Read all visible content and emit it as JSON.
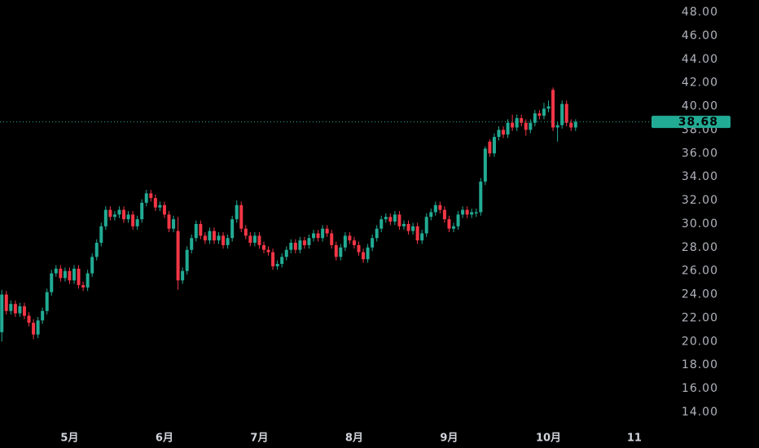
{
  "chart_data": {
    "type": "candlestick",
    "up_color": "#22ab94",
    "down_color": "#f23645",
    "last_price": 38.68,
    "ylim": [
      14,
      48
    ],
    "yticks": [
      {
        "value": 14,
        "label": "14.00"
      },
      {
        "value": 16,
        "label": "16.00"
      },
      {
        "value": 18,
        "label": "18.00"
      },
      {
        "value": 20,
        "label": "20.00"
      },
      {
        "value": 22,
        "label": "22.00"
      },
      {
        "value": 24,
        "label": "24.00"
      },
      {
        "value": 26,
        "label": "26.00"
      },
      {
        "value": 28,
        "label": "28.00"
      },
      {
        "value": 30,
        "label": "30.00"
      },
      {
        "value": 32,
        "label": "32.00"
      },
      {
        "value": 34,
        "label": "34.00"
      },
      {
        "value": 36,
        "label": "36.00"
      },
      {
        "value": 38,
        "label": "38.00"
      },
      {
        "value": 40,
        "label": "40.00"
      },
      {
        "value": 42,
        "label": "42.00"
      },
      {
        "value": 44,
        "label": "44.00"
      },
      {
        "value": 46,
        "label": "46.00"
      },
      {
        "value": 48,
        "label": "48.00"
      }
    ],
    "xlim": [
      -0.4,
      143.8
    ],
    "xticks": [
      {
        "value": 15,
        "label": "5月"
      },
      {
        "value": 36,
        "label": "6月"
      },
      {
        "value": 57,
        "label": "7月"
      },
      {
        "value": 78,
        "label": "8月"
      },
      {
        "value": 99,
        "label": "9月"
      },
      {
        "value": 121,
        "label": "10月"
      },
      {
        "value": 140,
        "label": "11"
      }
    ],
    "ohlc": [
      [
        20.8,
        24.4,
        20.0,
        24.0
      ],
      [
        24.0,
        24.3,
        22.3,
        22.6
      ],
      [
        22.6,
        23.5,
        22.3,
        23.2
      ],
      [
        23.2,
        23.5,
        22.1,
        22.4
      ],
      [
        22.4,
        23.3,
        22.1,
        23.0
      ],
      [
        23.0,
        23.3,
        21.9,
        22.2
      ],
      [
        22.2,
        22.5,
        21.3,
        21.6
      ],
      [
        21.6,
        21.9,
        20.2,
        20.6
      ],
      [
        20.6,
        22.1,
        20.3,
        21.8
      ],
      [
        21.8,
        22.9,
        21.5,
        22.6
      ],
      [
        22.6,
        24.5,
        22.3,
        24.2
      ],
      [
        24.2,
        26.1,
        23.9,
        25.8
      ],
      [
        25.8,
        26.5,
        25.5,
        26.2
      ],
      [
        26.2,
        26.5,
        25.1,
        25.4
      ],
      [
        25.4,
        26.3,
        25.1,
        26.0
      ],
      [
        26.0,
        26.3,
        24.9,
        25.2
      ],
      [
        25.2,
        26.5,
        24.9,
        26.2
      ],
      [
        26.2,
        26.5,
        24.5,
        24.8
      ],
      [
        24.8,
        25.1,
        24.3,
        24.6
      ],
      [
        24.6,
        26.1,
        24.3,
        25.8
      ],
      [
        25.8,
        27.5,
        25.5,
        27.2
      ],
      [
        27.2,
        28.7,
        26.9,
        28.4
      ],
      [
        28.4,
        30.1,
        28.1,
        29.8
      ],
      [
        29.8,
        31.5,
        29.5,
        31.2
      ],
      [
        31.2,
        31.5,
        30.3,
        30.6
      ],
      [
        30.6,
        31.1,
        30.3,
        30.8
      ],
      [
        30.8,
        31.5,
        30.5,
        31.2
      ],
      [
        31.2,
        31.5,
        30.1,
        30.4
      ],
      [
        30.4,
        31.1,
        30.1,
        30.8
      ],
      [
        30.8,
        31.1,
        29.5,
        29.8
      ],
      [
        29.8,
        30.7,
        29.5,
        30.4
      ],
      [
        30.4,
        32.1,
        30.1,
        31.8
      ],
      [
        31.8,
        32.9,
        31.5,
        32.6
      ],
      [
        32.6,
        32.9,
        31.9,
        32.2
      ],
      [
        32.2,
        32.5,
        31.1,
        31.4
      ],
      [
        31.4,
        31.9,
        31.1,
        31.6
      ],
      [
        31.6,
        31.9,
        30.5,
        30.8
      ],
      [
        30.8,
        31.1,
        29.3,
        29.6
      ],
      [
        29.6,
        30.7,
        29.3,
        30.4
      ],
      [
        29.4,
        30.6,
        24.4,
        25.2
      ],
      [
        25.2,
        26.3,
        24.9,
        26.0
      ],
      [
        26.0,
        28.1,
        25.7,
        27.8
      ],
      [
        27.8,
        29.1,
        27.5,
        28.8
      ],
      [
        28.8,
        30.3,
        28.5,
        30.0
      ],
      [
        30.0,
        30.3,
        28.7,
        29.0
      ],
      [
        29.0,
        29.3,
        28.3,
        28.6
      ],
      [
        28.6,
        29.7,
        28.3,
        29.4
      ],
      [
        29.4,
        29.7,
        28.3,
        28.6
      ],
      [
        28.6,
        29.3,
        28.3,
        29.0
      ],
      [
        29.0,
        29.3,
        27.9,
        28.2
      ],
      [
        28.2,
        29.1,
        27.9,
        28.8
      ],
      [
        28.8,
        30.7,
        28.5,
        30.4
      ],
      [
        30.4,
        32.0,
        30.1,
        31.6
      ],
      [
        31.6,
        31.9,
        29.3,
        29.6
      ],
      [
        29.6,
        29.9,
        28.7,
        29.0
      ],
      [
        29.0,
        29.3,
        28.1,
        28.4
      ],
      [
        28.4,
        29.3,
        28.1,
        29.0
      ],
      [
        29.0,
        29.3,
        27.9,
        28.2
      ],
      [
        28.2,
        28.5,
        27.5,
        27.8
      ],
      [
        27.8,
        28.1,
        27.3,
        27.6
      ],
      [
        27.6,
        27.9,
        26.1,
        26.4
      ],
      [
        26.4,
        26.9,
        26.1,
        26.6
      ],
      [
        26.6,
        27.5,
        26.3,
        27.2
      ],
      [
        27.2,
        28.1,
        26.9,
        27.8
      ],
      [
        27.8,
        28.7,
        27.5,
        28.4
      ],
      [
        28.4,
        28.7,
        27.5,
        27.8
      ],
      [
        27.8,
        28.9,
        27.5,
        28.6
      ],
      [
        28.6,
        28.9,
        27.9,
        28.2
      ],
      [
        28.2,
        29.1,
        27.9,
        28.8
      ],
      [
        28.8,
        29.5,
        28.5,
        29.2
      ],
      [
        29.2,
        29.5,
        28.5,
        28.8
      ],
      [
        28.8,
        29.9,
        28.5,
        29.6
      ],
      [
        29.6,
        29.9,
        28.9,
        29.2
      ],
      [
        29.2,
        29.5,
        27.9,
        28.2
      ],
      [
        28.2,
        28.5,
        26.9,
        27.2
      ],
      [
        27.2,
        28.3,
        26.9,
        28.0
      ],
      [
        28.0,
        29.3,
        27.7,
        29.0
      ],
      [
        29.0,
        29.3,
        28.3,
        28.6
      ],
      [
        28.6,
        28.9,
        27.9,
        28.2
      ],
      [
        28.2,
        28.5,
        27.3,
        27.6
      ],
      [
        27.6,
        27.9,
        26.7,
        27.0
      ],
      [
        27.0,
        28.3,
        26.7,
        28.0
      ],
      [
        28.0,
        29.1,
        27.7,
        28.8
      ],
      [
        28.8,
        29.9,
        28.5,
        29.6
      ],
      [
        29.6,
        30.7,
        29.3,
        30.4
      ],
      [
        30.4,
        30.9,
        30.1,
        30.6
      ],
      [
        30.6,
        30.9,
        29.9,
        30.2
      ],
      [
        30.2,
        31.1,
        29.9,
        30.8
      ],
      [
        30.8,
        31.1,
        29.5,
        29.8
      ],
      [
        29.8,
        30.3,
        29.5,
        30.0
      ],
      [
        30.0,
        30.3,
        29.1,
        29.4
      ],
      [
        29.4,
        30.1,
        29.1,
        29.8
      ],
      [
        29.8,
        30.1,
        28.3,
        28.6
      ],
      [
        28.6,
        29.5,
        28.3,
        29.2
      ],
      [
        29.2,
        30.9,
        28.9,
        30.6
      ],
      [
        30.6,
        31.3,
        30.3,
        31.0
      ],
      [
        31.0,
        31.9,
        30.7,
        31.6
      ],
      [
        31.6,
        31.9,
        30.9,
        31.2
      ],
      [
        31.2,
        31.5,
        30.1,
        30.4
      ],
      [
        30.4,
        30.7,
        29.3,
        29.6
      ],
      [
        29.6,
        30.1,
        29.3,
        29.8
      ],
      [
        29.8,
        31.1,
        29.5,
        30.8
      ],
      [
        30.8,
        31.5,
        30.5,
        31.2
      ],
      [
        31.2,
        31.5,
        30.5,
        30.8
      ],
      [
        30.8,
        31.3,
        30.5,
        31.0
      ],
      [
        30.9,
        31.3,
        30.6,
        31.0
      ],
      [
        31.0,
        33.9,
        30.7,
        33.6
      ],
      [
        33.6,
        36.6,
        33.3,
        36.4
      ],
      [
        37.0,
        37.2,
        35.7,
        36.0
      ],
      [
        36.0,
        37.7,
        35.7,
        37.4
      ],
      [
        37.4,
        38.3,
        37.1,
        38.0
      ],
      [
        38.0,
        38.3,
        37.3,
        37.6
      ],
      [
        37.6,
        38.9,
        37.3,
        38.6
      ],
      [
        38.6,
        39.3,
        37.9,
        38.2
      ],
      [
        38.2,
        39.3,
        37.9,
        39.0
      ],
      [
        39.0,
        39.3,
        38.3,
        38.6
      ],
      [
        38.6,
        38.9,
        37.5,
        38.0
      ],
      [
        38.0,
        38.9,
        37.7,
        38.6
      ],
      [
        38.6,
        39.7,
        38.3,
        39.4
      ],
      [
        39.4,
        39.7,
        38.9,
        39.2
      ],
      [
        39.2,
        40.3,
        38.9,
        39.8
      ],
      [
        39.8,
        40.5,
        39.5,
        40.0
      ],
      [
        41.4,
        41.6,
        37.9,
        38.2
      ],
      [
        38.2,
        38.7,
        37.0,
        38.4
      ],
      [
        38.4,
        40.5,
        38.1,
        40.2
      ],
      [
        40.2,
        40.5,
        38.3,
        38.6
      ],
      [
        38.6,
        38.9,
        37.9,
        38.2
      ],
      [
        38.2,
        38.9,
        37.9,
        38.68
      ]
    ]
  }
}
